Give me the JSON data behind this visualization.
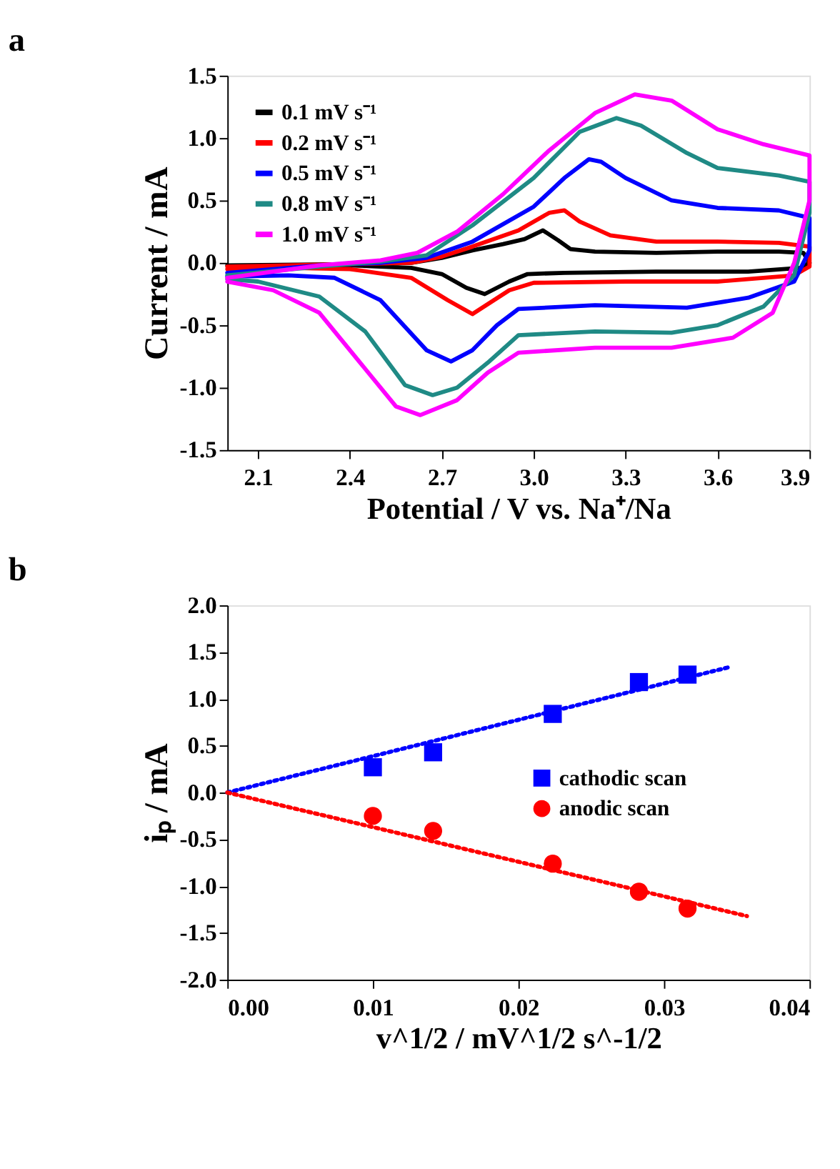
{
  "chart_data": [
    {
      "type": "line",
      "title": "a",
      "xlabel": "Potential / V vs. Na⁺/Na",
      "ylabel": "Current / mA",
      "legend": "top left",
      "line_style": "solid",
      "xlim": [
        2.0,
        3.9
      ],
      "xticks": [
        2.1,
        2.4,
        2.7,
        {
          "value": 3.0,
          "label": "3.0"
        },
        3.3,
        3.6,
        3.9
      ],
      "ylim": [
        -1.5,
        1.5
      ],
      "yticks": [
        -1.5,
        {
          "value": -1.0,
          "label": "-1.0"
        },
        -0.5,
        {
          "value": 0,
          "label": "0.0"
        },
        0.5,
        {
          "value": 1.0,
          "label": "1.0"
        },
        1.5
      ],
      "series": [
        {
          "name": "0.1 mV s⁻¹",
          "color": "#000000",
          "x": [
            2.0,
            2.4,
            2.6,
            2.7,
            2.8,
            2.9,
            2.97,
            3.03,
            3.08,
            3.12,
            3.2,
            3.4,
            3.6,
            3.8,
            3.88,
            3.9,
            3.87,
            3.7,
            3.4,
            3.1,
            2.98,
            2.92,
            2.84,
            2.78,
            2.7,
            2.6,
            2.4,
            2.01
          ],
          "values": [
            -0.02,
            -0.01,
            0.0,
            0.04,
            0.1,
            0.15,
            0.19,
            0.26,
            0.18,
            0.11,
            0.09,
            0.08,
            0.09,
            0.09,
            0.08,
            0.0,
            -0.04,
            -0.07,
            -0.07,
            -0.08,
            -0.09,
            -0.15,
            -0.25,
            -0.2,
            -0.09,
            -0.04,
            -0.02,
            -0.02
          ]
        },
        {
          "name": "0.2 mV s⁻¹",
          "color": "#ff0000",
          "x": [
            2.0,
            2.4,
            2.6,
            2.7,
            2.8,
            2.95,
            3.05,
            3.1,
            3.15,
            3.25,
            3.4,
            3.6,
            3.8,
            3.9,
            3.9,
            3.85,
            3.6,
            3.3,
            3.0,
            2.92,
            2.8,
            2.72,
            2.6,
            2.4,
            2.2,
            2.0
          ],
          "values": [
            -0.03,
            -0.01,
            0.0,
            0.05,
            0.13,
            0.26,
            0.4,
            0.42,
            0.33,
            0.22,
            0.17,
            0.17,
            0.16,
            0.13,
            -0.03,
            -0.1,
            -0.15,
            -0.15,
            -0.16,
            -0.22,
            -0.41,
            -0.3,
            -0.12,
            -0.05,
            -0.04,
            -0.05
          ]
        },
        {
          "name": "0.5 mV s⁻¹",
          "color": "#0000ff",
          "x": [
            2.0,
            2.3,
            2.5,
            2.65,
            2.8,
            3.0,
            3.1,
            3.18,
            3.22,
            3.3,
            3.45,
            3.6,
            3.8,
            3.9,
            3.9,
            3.85,
            3.7,
            3.5,
            3.2,
            2.95,
            2.88,
            2.8,
            2.73,
            2.65,
            2.5,
            2.35,
            2.2,
            2.0
          ],
          "values": [
            -0.08,
            -0.02,
            0.0,
            0.04,
            0.17,
            0.45,
            0.68,
            0.83,
            0.81,
            0.68,
            0.5,
            0.44,
            0.42,
            0.36,
            0.1,
            -0.15,
            -0.28,
            -0.36,
            -0.34,
            -0.37,
            -0.5,
            -0.7,
            -0.79,
            -0.7,
            -0.3,
            -0.12,
            -0.1,
            -0.11
          ]
        },
        {
          "name": "0.8 mV s⁻¹",
          "color": "#1f8a85",
          "x": [
            2.0,
            2.3,
            2.5,
            2.65,
            2.8,
            3.0,
            3.15,
            3.27,
            3.35,
            3.5,
            3.6,
            3.8,
            3.9,
            3.9,
            3.85,
            3.75,
            3.6,
            3.45,
            3.2,
            2.95,
            2.85,
            2.75,
            2.67,
            2.58,
            2.45,
            2.3,
            2.1,
            2.0
          ],
          "values": [
            -0.1,
            -0.03,
            0.01,
            0.06,
            0.3,
            0.68,
            1.05,
            1.16,
            1.1,
            0.88,
            0.76,
            0.7,
            0.65,
            0.4,
            -0.1,
            -0.35,
            -0.5,
            -0.56,
            -0.55,
            -0.58,
            -0.8,
            -1.0,
            -1.06,
            -0.98,
            -0.55,
            -0.27,
            -0.15,
            -0.13
          ]
        },
        {
          "name": "1.0 mV s⁻¹",
          "color": "#ff00ff",
          "x": [
            2.0,
            2.3,
            2.5,
            2.62,
            2.75,
            2.9,
            3.05,
            3.2,
            3.33,
            3.45,
            3.6,
            3.75,
            3.9,
            3.9,
            3.85,
            3.78,
            3.65,
            3.45,
            3.2,
            2.95,
            2.85,
            2.75,
            2.63,
            2.55,
            2.45,
            2.3,
            2.15,
            2.0
          ],
          "values": [
            -0.12,
            -0.02,
            0.02,
            0.08,
            0.25,
            0.55,
            0.9,
            1.2,
            1.35,
            1.3,
            1.07,
            0.95,
            0.86,
            0.5,
            0.0,
            -0.4,
            -0.6,
            -0.68,
            -0.68,
            -0.72,
            -0.88,
            -1.1,
            -1.22,
            -1.15,
            -0.85,
            -0.4,
            -0.22,
            -0.15
          ]
        }
      ]
    },
    {
      "type": "scatter",
      "title": "b",
      "xlabel": "v^1/2 / mV^1/2 s^-1/2",
      "ylabel": "iₚ / mA",
      "legend": "right",
      "xlim": [
        0,
        0.04
      ],
      "xticks": [
        {
          "value": 0,
          "label": "0.00"
        },
        0.01,
        0.02,
        0.03,
        0.04
      ],
      "ylim": [
        -2.0,
        2.0
      ],
      "yticks": [
        {
          "value": -2.0,
          "label": "-2.0"
        },
        -1.5,
        {
          "value": -1.0,
          "label": "-1.0"
        },
        -0.5,
        {
          "value": 0,
          "label": "0.0"
        },
        0.5,
        {
          "value": 1.0,
          "label": "1.0"
        },
        1.5,
        {
          "value": 2.0,
          "label": "2.0"
        }
      ],
      "series": [
        {
          "name": "cathodic scan",
          "color": "#0000ff",
          "marker": "square",
          "x": [
            0.01,
            0.01414,
            0.02236,
            0.02828,
            0.03162
          ],
          "values": [
            0.27,
            0.43,
            0.84,
            1.18,
            1.26
          ]
        },
        {
          "name": "anodic scan",
          "color": "#ff0000",
          "marker": "circle",
          "x": [
            0.01,
            0.01414,
            0.02236,
            0.02828,
            0.03162
          ],
          "values": [
            -0.25,
            -0.41,
            -0.76,
            -1.06,
            -1.24
          ]
        },
        {
          "type": "line",
          "line_style": "dotted",
          "color": "#0000ff",
          "x": [
            0,
            0.0345
          ],
          "values": [
            0,
            1.34
          ]
        },
        {
          "type": "line",
          "line_style": "dotted",
          "color": "#ff0000",
          "x": [
            0,
            0.0357
          ],
          "values": [
            0,
            -1.32
          ]
        }
      ]
    }
  ]
}
